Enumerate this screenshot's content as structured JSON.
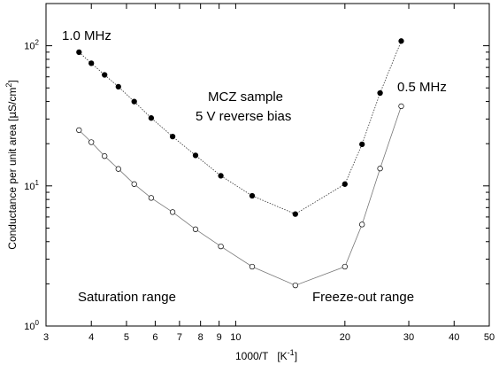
{
  "chart_data": {
    "type": "scatter",
    "xscale": "log",
    "yscale": "log",
    "xlim": [
      3,
      50
    ],
    "ylim": [
      1,
      200
    ],
    "grid": false,
    "xlabel": "1000/T",
    "xlabel_unit_base": "[K",
    "xlabel_unit_sup": "-1",
    "xlabel_unit_end": "]",
    "ylabel": "Conductance per unit area [",
    "ylabel_mu": "μ",
    "ylabel_unit": "S/cm",
    "ylabel_sup": "2",
    "ylabel_end": "]",
    "x_ticks": [
      {
        "value": 3,
        "label": "3"
      },
      {
        "value": 4,
        "label": "4"
      },
      {
        "value": 5,
        "label": "5"
      },
      {
        "value": 6,
        "label": "6"
      },
      {
        "value": 7,
        "label": "7"
      },
      {
        "value": 8,
        "label": "8"
      },
      {
        "value": 9,
        "label": "9"
      },
      {
        "value": 10,
        "label": "10"
      },
      {
        "value": 20,
        "label": "20"
      },
      {
        "value": 30,
        "label": "30"
      },
      {
        "value": 40,
        "label": "40"
      },
      {
        "value": 50,
        "label": "50"
      }
    ],
    "y_ticks": [
      {
        "value": 1,
        "base": "10",
        "exp": "0"
      },
      {
        "value": 10,
        "base": "10",
        "exp": "1"
      },
      {
        "value": 100,
        "base": "10",
        "exp": "2"
      }
    ],
    "series": [
      {
        "name": "1.0 MHz",
        "marker": "filled",
        "x": [
          3.7,
          4.0,
          4.35,
          4.75,
          5.25,
          5.85,
          6.7,
          7.75,
          9.1,
          11.1,
          14.6,
          20.0,
          22.3,
          25.0,
          28.6
        ],
        "y": [
          90,
          75,
          62,
          51,
          40,
          30.5,
          22.5,
          16.5,
          11.8,
          8.5,
          6.3,
          10.3,
          19.8,
          46,
          108
        ]
      },
      {
        "name": "0.5 MHz",
        "marker": "open",
        "x": [
          3.7,
          4.0,
          4.35,
          4.75,
          5.25,
          5.85,
          6.7,
          7.75,
          9.1,
          11.1,
          14.6,
          20.0,
          22.3,
          25.0,
          28.6
        ],
        "y": [
          25,
          20.5,
          16.3,
          13.2,
          10.3,
          8.2,
          6.5,
          4.9,
          3.7,
          2.65,
          1.95,
          2.65,
          5.3,
          13.3,
          37
        ]
      }
    ],
    "annotations": [
      {
        "id": "series_1",
        "text": "1.0 MHz"
      },
      {
        "id": "series_2",
        "text": "0.5 MHz"
      },
      {
        "id": "sample",
        "text": "MCZ sample"
      },
      {
        "id": "bias",
        "text": "5 V reverse bias"
      },
      {
        "id": "saturation",
        "text": "Saturation range"
      },
      {
        "id": "freeze",
        "text": "Freeze-out range"
      }
    ]
  }
}
